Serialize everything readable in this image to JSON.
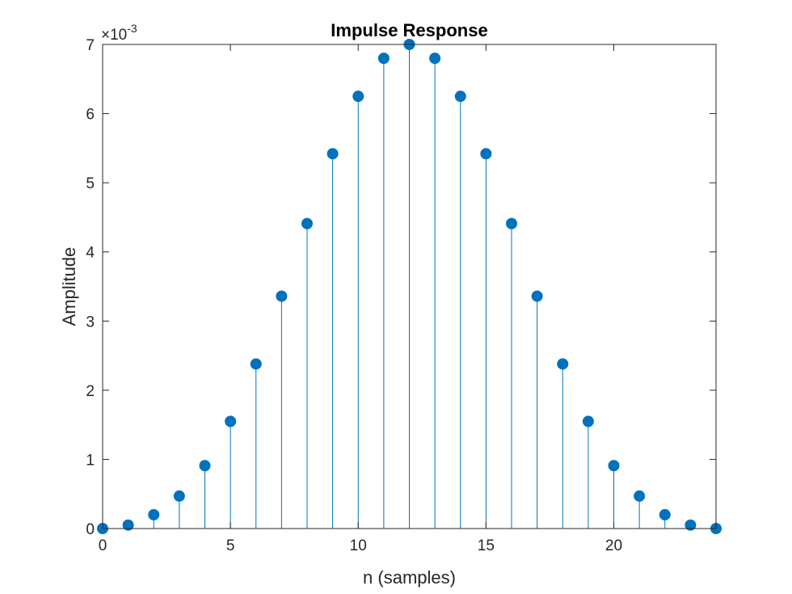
{
  "chart_data": {
    "type": "stem",
    "title": "Impulse Response",
    "xlabel": "n (samples)",
    "ylabel": "Amplitude",
    "y_exponent_label": "×10",
    "y_exponent_power": "-3",
    "xlim": [
      0,
      24
    ],
    "ylim": [
      0,
      7
    ],
    "xticks": [
      0,
      5,
      10,
      15,
      20
    ],
    "yticks": [
      0,
      1,
      2,
      3,
      4,
      5,
      6,
      7
    ],
    "grid": false,
    "series": [
      {
        "color": "#0072BD",
        "x": [
          0,
          1,
          2,
          3,
          4,
          5,
          6,
          7,
          8,
          9,
          10,
          11,
          12,
          13,
          14,
          15,
          16,
          17,
          18,
          19,
          20,
          21,
          22,
          23,
          24
        ],
        "values": [
          0.0,
          0.05,
          0.2,
          0.47,
          0.91,
          1.55,
          2.38,
          3.36,
          4.41,
          5.42,
          6.25,
          6.8,
          7.0,
          6.8,
          6.25,
          5.42,
          4.41,
          3.36,
          2.38,
          1.55,
          0.91,
          0.47,
          0.2,
          0.05,
          0.0
        ]
      }
    ]
  }
}
